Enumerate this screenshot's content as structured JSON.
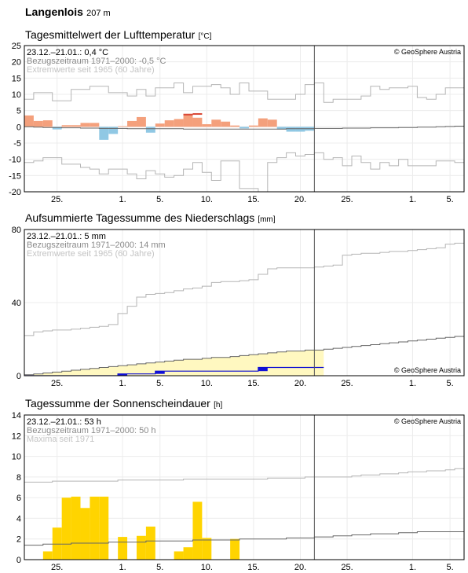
{
  "header": {
    "station": "Langenlois",
    "elevation": "207 m"
  },
  "x_ticks": [
    {
      "day": 25,
      "label": "25."
    },
    {
      "day": 32,
      "label": "1."
    },
    {
      "day": 36,
      "label": "5."
    },
    {
      "day": 41,
      "label": "10."
    },
    {
      "day": 46,
      "label": "15."
    },
    {
      "day": 51,
      "label": "20."
    },
    {
      "day": 56,
      "label": "25."
    },
    {
      "day": 63,
      "label": "1."
    },
    {
      "day": 67,
      "label": "5."
    }
  ],
  "x_range": [
    21.5,
    68.5
  ],
  "current_day": 53,
  "charts": [
    {
      "id": "temp",
      "title": "Tagesmittelwert der Lufttemperatur",
      "unit": "[°C]",
      "copyright": "© GeoSphere Austria",
      "info": [
        "23.12.–21.01.: 0,4 °C",
        "Bezugszeitraum 1971–2000: -0,5 °C",
        "Extremwerte seit 1965 (60 Jahre)"
      ],
      "chart_data": {
        "type": "bar",
        "ylim": [
          -20,
          25
        ],
        "y_ticks": [
          25,
          20,
          15,
          10,
          5,
          0,
          -5,
          -10,
          -15,
          -20
        ],
        "start_day": 22,
        "values": [
          3.5,
          1.8,
          2.0,
          -0.8,
          0.5,
          0.5,
          1.2,
          1.2,
          -4.0,
          -2.2,
          0.2,
          1.8,
          3.0,
          -1.8,
          1.0,
          2.0,
          2.4,
          4.0,
          2.8,
          0.8,
          2.2,
          1.6,
          0.4,
          -0.5,
          0.4,
          2.6,
          2.2,
          -0.8,
          -1.5,
          -1.5,
          -1.2
        ],
        "max_values": [
          4.0,
          4.2
        ],
        "normal": [
          0.0,
          -0.1,
          -0.2,
          -0.2,
          -0.3,
          -0.3,
          -0.4,
          -0.4,
          -0.5,
          -0.5,
          -0.5,
          -0.6,
          -0.6,
          -0.6,
          -0.6,
          -0.6,
          -0.6,
          -0.7,
          -0.7,
          -0.7,
          -0.7,
          -0.7,
          -0.7,
          -0.7,
          -0.7,
          -0.7,
          -0.7,
          -0.7,
          -0.6,
          -0.6,
          -0.6,
          -0.5,
          -0.5,
          -0.5,
          -0.4,
          -0.4,
          -0.4,
          -0.3,
          -0.3,
          -0.3,
          -0.2,
          -0.2,
          -0.1,
          -0.1,
          0.0,
          0.1,
          0.2,
          0.3
        ],
        "extreme_max": [
          8.5,
          10.5,
          10.5,
          8.0,
          8.0,
          11.5,
          11.5,
          12.5,
          12.5,
          10.5,
          10.5,
          9.5,
          11.5,
          9.5,
          12.0,
          12.0,
          13.5,
          10.5,
          12.5,
          12.5,
          13.0,
          12.0,
          10.0,
          13.5,
          11.0,
          11.0,
          8.5,
          8.5,
          8.5,
          10.0,
          13.0,
          13.5,
          7.5,
          8.5,
          8.5,
          8.5,
          9.5,
          12.5,
          11.5,
          12.0,
          12.0,
          12.5,
          9.0,
          8.5,
          10.0,
          12.0,
          12.0,
          10.0
        ],
        "extreme_min": [
          -11.0,
          -10.5,
          -9.5,
          -9.5,
          -11.5,
          -11.5,
          -12.5,
          -13.0,
          -14.5,
          -13.0,
          -13.0,
          -14.5,
          -16.0,
          -13.5,
          -14.5,
          -15.5,
          -15.0,
          -13.0,
          -11.0,
          -14.0,
          -16.5,
          -10.5,
          -10.5,
          -19.0,
          -19.0,
          -20.0,
          -11.0,
          -9.5,
          -8.0,
          -9.0,
          -8.5,
          -8.0,
          -10.0,
          -9.5,
          -12.0,
          -9.0,
          -11.0,
          -13.0,
          -11.0,
          -12.0,
          -10.0,
          -12.0,
          -12.0,
          -12.0,
          -10.5,
          -10.5,
          -11.0,
          -10.5
        ]
      }
    },
    {
      "id": "precip",
      "title": "Aufsummierte Tagessumme des Niederschlags",
      "unit": "[mm]",
      "copyright": "© GeoSphere Austria",
      "info": [
        "23.12.–21.01.: 5 mm",
        "Bezugszeitraum 1971–2000: 14 mm",
        "Extremwerte seit 1965 (60 Jahre)"
      ],
      "chart_data": {
        "type": "area",
        "ylim": [
          0,
          80
        ],
        "y_ticks": [
          80,
          40,
          0
        ],
        "start_day": 22,
        "cumulative_observed": [
          0.0,
          0.0,
          0.0,
          0.0,
          0.0,
          0.0,
          0.0,
          0.0,
          0.0,
          0.0,
          1.0,
          1.0,
          1.0,
          1.0,
          2.5,
          2.5,
          2.5,
          2.5,
          2.5,
          2.5,
          2.5,
          2.5,
          2.5,
          2.5,
          2.5,
          4.5,
          4.5,
          4.5,
          4.5,
          4.5,
          4.5,
          4.5
        ],
        "reference_cumulative": [
          0.5,
          1.0,
          1.5,
          2.0,
          2.5,
          3.0,
          3.5,
          4.0,
          4.5,
          5.0,
          5.5,
          6.0,
          6.5,
          7.0,
          7.5,
          8.0,
          8.5,
          9.0,
          9.0,
          9.5,
          10.0,
          10.0,
          10.5,
          11.0,
          11.5,
          12.0,
          12.5,
          13.0,
          13.5,
          13.5,
          14.0,
          14.0,
          14.5,
          15.0,
          15.5,
          16.0,
          16.5,
          17.0,
          17.5,
          18.0,
          18.5,
          19.0,
          19.5,
          20.0,
          20.5,
          21.0,
          21.5,
          22.0
        ],
        "extreme_cumulative": [
          22.0,
          24.0,
          24.5,
          25.0,
          25.0,
          25.5,
          26.0,
          26.5,
          27.0,
          28.0,
          34.0,
          38.0,
          43.0,
          44.5,
          45.0,
          45.5,
          46.5,
          47.5,
          48.0,
          49.0,
          51.0,
          51.5,
          51.5,
          52.0,
          52.5,
          55.5,
          58.5,
          59.0,
          59.0,
          59.0,
          59.0,
          59.5,
          60.0,
          60.5,
          66.0,
          66.5,
          67.0,
          67.0,
          67.5,
          68.0,
          68.0,
          68.5,
          69.0,
          69.5,
          70.0,
          72.0,
          72.5,
          73.0
        ]
      }
    },
    {
      "id": "sun",
      "title": "Tagessumme der Sonnenscheindauer",
      "unit": "[h]",
      "copyright": "© GeoSphere Austria",
      "info": [
        "23.12.–21.01.: 53 h",
        "Bezugszeitraum 1971–2000: 50 h",
        "Maxima seit 1971"
      ],
      "chart_data": {
        "type": "bar",
        "ylim": [
          0,
          14
        ],
        "y_ticks": [
          14,
          12,
          10,
          8,
          6,
          4,
          2,
          0
        ],
        "start_day": 22,
        "values": [
          0.0,
          0.0,
          0.8,
          3.1,
          6.0,
          6.1,
          5.0,
          6.1,
          6.1,
          0.0,
          2.2,
          0.0,
          2.3,
          3.2,
          0.0,
          0.0,
          0.8,
          1.2,
          5.6,
          2.1,
          0.0,
          0.0,
          2.0,
          0.0,
          0.0,
          0.0,
          0.0,
          0.0,
          0.0,
          0.0,
          0.0
        ],
        "reference": [
          1.4,
          1.4,
          1.5,
          1.5,
          1.5,
          1.6,
          1.6,
          1.6,
          1.6,
          1.7,
          1.7,
          1.7,
          1.7,
          1.8,
          1.8,
          1.8,
          1.8,
          1.8,
          1.9,
          1.9,
          1.9,
          1.9,
          1.9,
          2.0,
          2.0,
          2.0,
          2.0,
          2.0,
          2.1,
          2.1,
          2.1,
          2.2,
          2.2,
          2.3,
          2.3,
          2.4,
          2.4,
          2.5,
          2.5,
          2.5,
          2.6,
          2.6,
          2.7,
          2.7,
          2.7,
          2.7,
          2.7,
          2.7
        ],
        "maxima": [
          7.5,
          7.5,
          7.5,
          7.6,
          7.6,
          7.6,
          7.6,
          7.6,
          7.6,
          7.6,
          7.7,
          7.7,
          7.7,
          7.7,
          7.7,
          7.7,
          7.7,
          7.8,
          7.8,
          7.8,
          7.8,
          7.8,
          7.8,
          7.8,
          7.8,
          7.8,
          7.9,
          7.9,
          7.9,
          7.9,
          8.0,
          8.0,
          8.0,
          8.0,
          8.0,
          8.1,
          8.2,
          8.2,
          8.3,
          8.3,
          8.4,
          8.5,
          8.5,
          8.6,
          8.6,
          8.7,
          8.8,
          8.9
        ]
      }
    }
  ],
  "colors": {
    "warm": "#f4a07c",
    "warm_max": "#d94a38",
    "cold": "#90c8e4",
    "precip_fill": "#fff8c0",
    "precip_line": "#0a0ad2",
    "precip_bar": "#1010d8",
    "sun": "#ffd400",
    "ref_line": "#666666",
    "extreme_line": "#b5b5b5",
    "grid": "#ececec",
    "current_line": "#555555"
  }
}
